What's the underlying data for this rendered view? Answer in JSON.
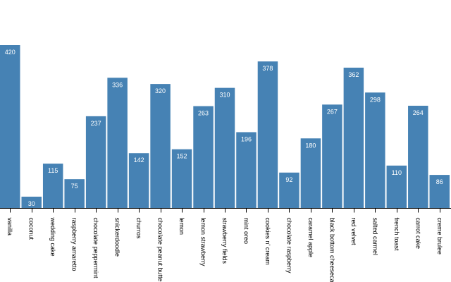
{
  "chart_data": {
    "type": "bar",
    "title": "",
    "xlabel": "",
    "ylabel": "",
    "categories": [
      "vanilla",
      "coconut",
      "wedding cake",
      "raspberry amaretto",
      "chocolate peppermint",
      "snickerdoodle",
      "churros",
      "chocolate peanut butter",
      "lemon",
      "lemon strawberry",
      "strawberry fields",
      "mint oreo",
      "cookies n' cream",
      "chocolate raspberry",
      "caramel apple",
      "black bottom cheesecake",
      "red velvet",
      "salted carmel",
      "french toast",
      "carrot cake",
      "creme brulee"
    ],
    "values": [
      420,
      30,
      115,
      75,
      237,
      336,
      142,
      320,
      152,
      263,
      310,
      196,
      378,
      92,
      180,
      267,
      362,
      298,
      110,
      264,
      86
    ],
    "ylim": [
      0,
      420
    ],
    "grid": false,
    "bar_color": "#4682b4",
    "value_label_color": "#ffffff",
    "show_value_labels": true
  }
}
